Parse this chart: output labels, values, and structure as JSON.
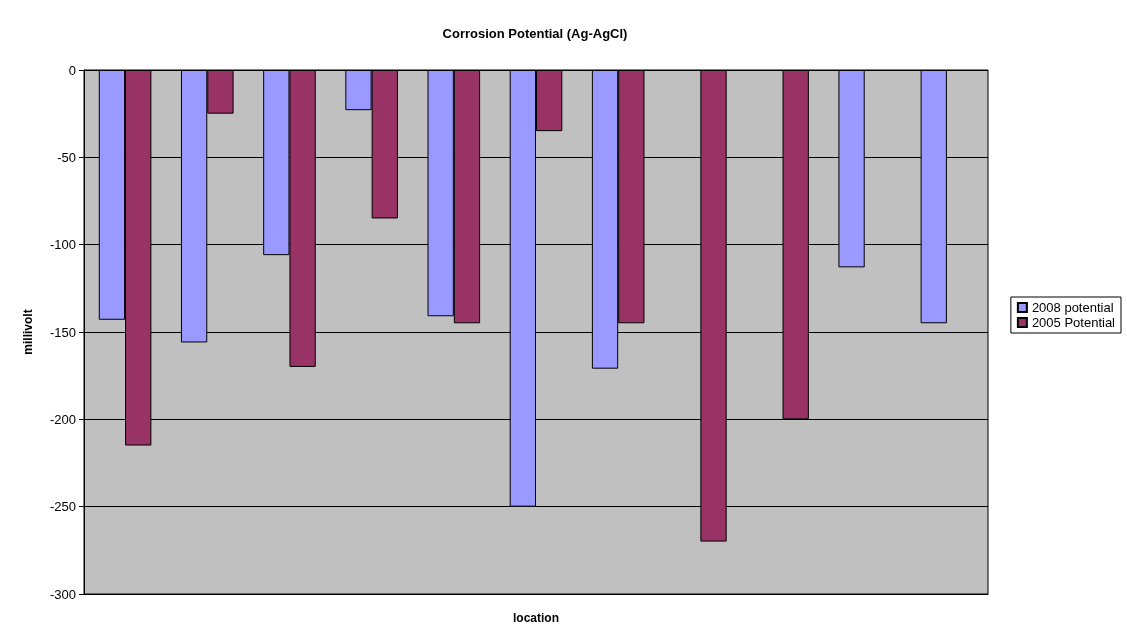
{
  "chart_data": {
    "type": "bar",
    "title": "Corrosion Potential (Ag-AgCl)",
    "xlabel": "location",
    "ylabel": "millivolt",
    "categories": [
      null,
      null,
      null,
      null,
      null,
      null,
      null,
      null,
      null,
      null,
      null
    ],
    "series": [
      {
        "name": "2008 potential",
        "color": "#9999ff",
        "values": [
          -143,
          -156,
          -106,
          -23,
          -141,
          -250,
          -171,
          null,
          null,
          -113,
          -145
        ]
      },
      {
        "name": "2005 Potential",
        "color": "#993366",
        "values": [
          -215,
          -25,
          -170,
          -85,
          -145,
          -35,
          -145,
          -270,
          -200,
          null,
          null
        ]
      }
    ],
    "ylim": [
      -300,
      0
    ],
    "yticks": [
      -300,
      -250,
      -200,
      -150,
      -100,
      -50,
      0
    ],
    "grid": "y",
    "legend": "right"
  }
}
